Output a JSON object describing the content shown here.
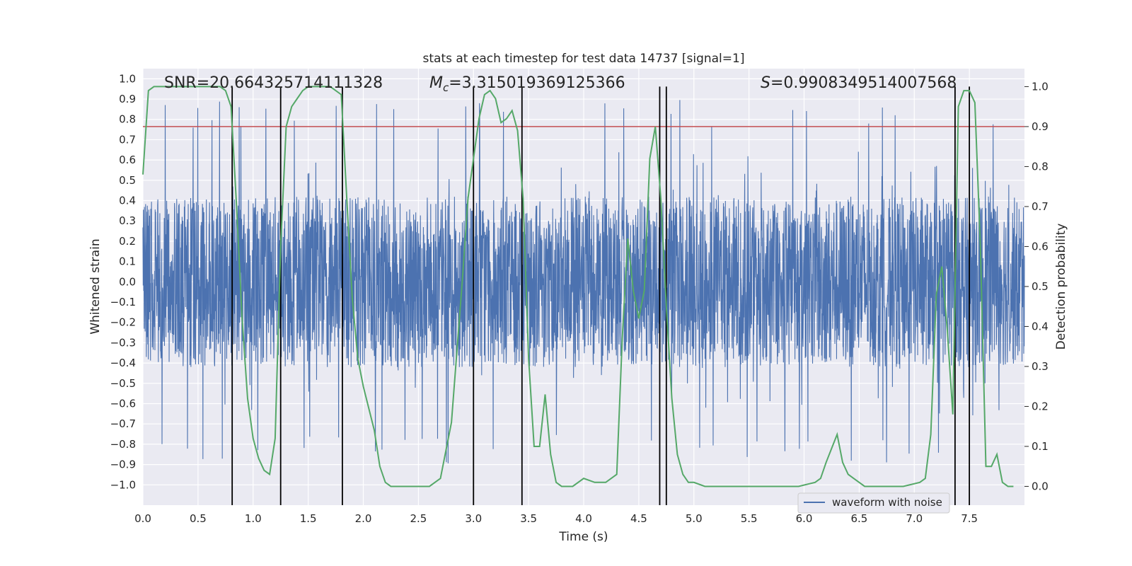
{
  "chart_data": {
    "type": "line",
    "title": "stats at each timestep for test data 14737 [signal=1]",
    "xlabel": "Time (s)",
    "ylabel": "Whitened strain",
    "y2label": "Detection probability",
    "xlim": [
      0.0,
      8.0
    ],
    "ylim": [
      -1.1,
      1.05
    ],
    "y2lim": [
      -0.047,
      1.045
    ],
    "x_ticks": [
      0.0,
      0.5,
      1.0,
      1.5,
      2.0,
      2.5,
      3.0,
      3.5,
      4.0,
      4.5,
      5.0,
      5.5,
      6.0,
      6.5,
      7.0,
      7.5
    ],
    "x_tick_labels": [
      "0.0",
      "0.5",
      "1.0",
      "1.5",
      "2.0",
      "2.5",
      "3.0",
      "3.5",
      "4.0",
      "4.5",
      "5.0",
      "5.5",
      "6.0",
      "6.5",
      "7.0",
      "7.5"
    ],
    "y_ticks": [
      1.0,
      0.9,
      0.8,
      0.7,
      0.6,
      0.5,
      0.4,
      0.3,
      0.2,
      0.1,
      0.0,
      -0.1,
      -0.2,
      -0.3,
      -0.4,
      -0.5,
      -0.6,
      -0.7,
      -0.8,
      -0.9,
      -1.0
    ],
    "y_tick_labels": [
      "1.0",
      "0.9",
      "0.8",
      "0.7",
      "0.6",
      "0.5",
      "0.4",
      "0.3",
      "0.2",
      "0.1",
      "0.0",
      "−0.1",
      "−0.2",
      "−0.3",
      "−0.4",
      "−0.5",
      "−0.6",
      "−0.7",
      "−0.8",
      "−0.9",
      "−1.0"
    ],
    "y2_ticks": [
      1.0,
      0.9,
      0.8,
      0.7,
      0.6,
      0.5,
      0.4,
      0.3,
      0.2,
      0.1,
      0.0
    ],
    "y2_tick_labels": [
      "1.0",
      "0.9",
      "0.8",
      "0.7",
      "0.6",
      "0.5",
      "0.4",
      "0.3",
      "0.2",
      "0.1",
      "0.0"
    ],
    "grid": true,
    "annotations": {
      "snr": "SNR=20.664325714111328",
      "mc_symbol": "M",
      "mc_sub": "c",
      "mc_value": "=3.315019369125366",
      "s_symbol": "S",
      "s_value": "=0.9908349514007568"
    },
    "legend": {
      "placement": "lower-right",
      "label": "waveform with noise"
    },
    "series": [
      {
        "name": "waveform with noise",
        "axis": "left",
        "color": "#4c72b0",
        "style": "dense noisy signal",
        "typical_envelope": [
          -0.42,
          0.42
        ],
        "peak_range": [
          -1.0,
          0.9
        ]
      },
      {
        "axis": "right",
        "color": "#55a868",
        "x": [
          0.0,
          0.05,
          0.1,
          0.2,
          0.35,
          0.5,
          0.6,
          0.7,
          0.75,
          0.8,
          0.85,
          0.9,
          0.95,
          1.0,
          1.05,
          1.1,
          1.15,
          1.2,
          1.25,
          1.3,
          1.35,
          1.4,
          1.45,
          1.5,
          1.6,
          1.7,
          1.8,
          1.85,
          1.9,
          1.95,
          2.0,
          2.1,
          2.15,
          2.2,
          2.25,
          2.35,
          2.5,
          2.6,
          2.7,
          2.8,
          2.9,
          2.95,
          3.0,
          3.05,
          3.1,
          3.15,
          3.2,
          3.25,
          3.3,
          3.35,
          3.4,
          3.45,
          3.5,
          3.55,
          3.6,
          3.65,
          3.7,
          3.75,
          3.8,
          3.85,
          3.9,
          4.0,
          4.1,
          4.2,
          4.3,
          4.35,
          4.4,
          4.45,
          4.5,
          4.55,
          4.6,
          4.65,
          4.7,
          4.75,
          4.8,
          4.85,
          4.9,
          4.95,
          5.0,
          5.1,
          5.3,
          5.5,
          5.8,
          5.95,
          6.1,
          6.15,
          6.2,
          6.3,
          6.35,
          6.4,
          6.45,
          6.55,
          6.6,
          6.7,
          6.9,
          7.05,
          7.1,
          7.15,
          7.2,
          7.25,
          7.3,
          7.35,
          7.4,
          7.45,
          7.5,
          7.55,
          7.6,
          7.65,
          7.7,
          7.75,
          7.8,
          7.85,
          7.9
        ],
        "values": [
          0.78,
          0.99,
          1.0,
          1.0,
          1.0,
          1.0,
          1.0,
          1.0,
          0.99,
          0.95,
          0.7,
          0.42,
          0.22,
          0.12,
          0.07,
          0.04,
          0.03,
          0.12,
          0.6,
          0.9,
          0.95,
          0.97,
          0.99,
          1.0,
          1.0,
          1.0,
          0.98,
          0.72,
          0.47,
          0.32,
          0.25,
          0.14,
          0.05,
          0.01,
          0.0,
          0.0,
          0.0,
          0.0,
          0.02,
          0.16,
          0.52,
          0.72,
          0.82,
          0.92,
          0.98,
          0.99,
          0.97,
          0.91,
          0.92,
          0.94,
          0.89,
          0.72,
          0.32,
          0.1,
          0.1,
          0.23,
          0.08,
          0.01,
          0.0,
          0.0,
          0.0,
          0.02,
          0.01,
          0.01,
          0.03,
          0.37,
          0.62,
          0.49,
          0.42,
          0.49,
          0.82,
          0.9,
          0.72,
          0.45,
          0.22,
          0.08,
          0.03,
          0.01,
          0.01,
          0.0,
          0.0,
          0.0,
          0.0,
          0.0,
          0.01,
          0.02,
          0.06,
          0.13,
          0.06,
          0.03,
          0.02,
          0.0,
          0.0,
          0.0,
          0.0,
          0.01,
          0.02,
          0.13,
          0.48,
          0.55,
          0.39,
          0.18,
          0.95,
          0.99,
          0.99,
          0.96,
          0.6,
          0.05,
          0.05,
          0.08,
          0.01,
          0.0,
          0.0
        ]
      }
    ],
    "threshold": {
      "axis": "right",
      "value": 0.9,
      "color": "#c44e52"
    },
    "vlines": [
      0.81,
      1.25,
      1.81,
      3.0,
      3.44,
      4.69,
      4.75,
      7.37,
      7.5
    ],
    "vline_range": [
      -0.047,
      1.0
    ]
  }
}
